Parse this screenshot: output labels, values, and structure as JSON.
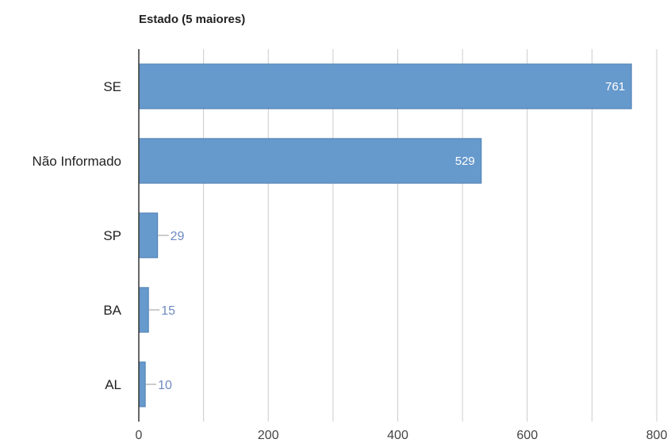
{
  "chart_data": {
    "type": "bar",
    "orientation": "horizontal",
    "title": "Estado (5 maiores)",
    "categories": [
      "SE",
      "Não Informado",
      "SP",
      "BA",
      "AL"
    ],
    "values": [
      761,
      529,
      29,
      15,
      10
    ],
    "data_labels": [
      "761",
      "529",
      "29",
      "15",
      "10"
    ],
    "xlim": [
      0,
      800
    ],
    "x_ticks": [
      0,
      200,
      400,
      600,
      800
    ],
    "xlabel": "",
    "ylabel": "",
    "grid": true,
    "bar_color": "#6699cc",
    "label_inside_color": "#ffffff",
    "label_outside_color": "#6f8bbf"
  }
}
